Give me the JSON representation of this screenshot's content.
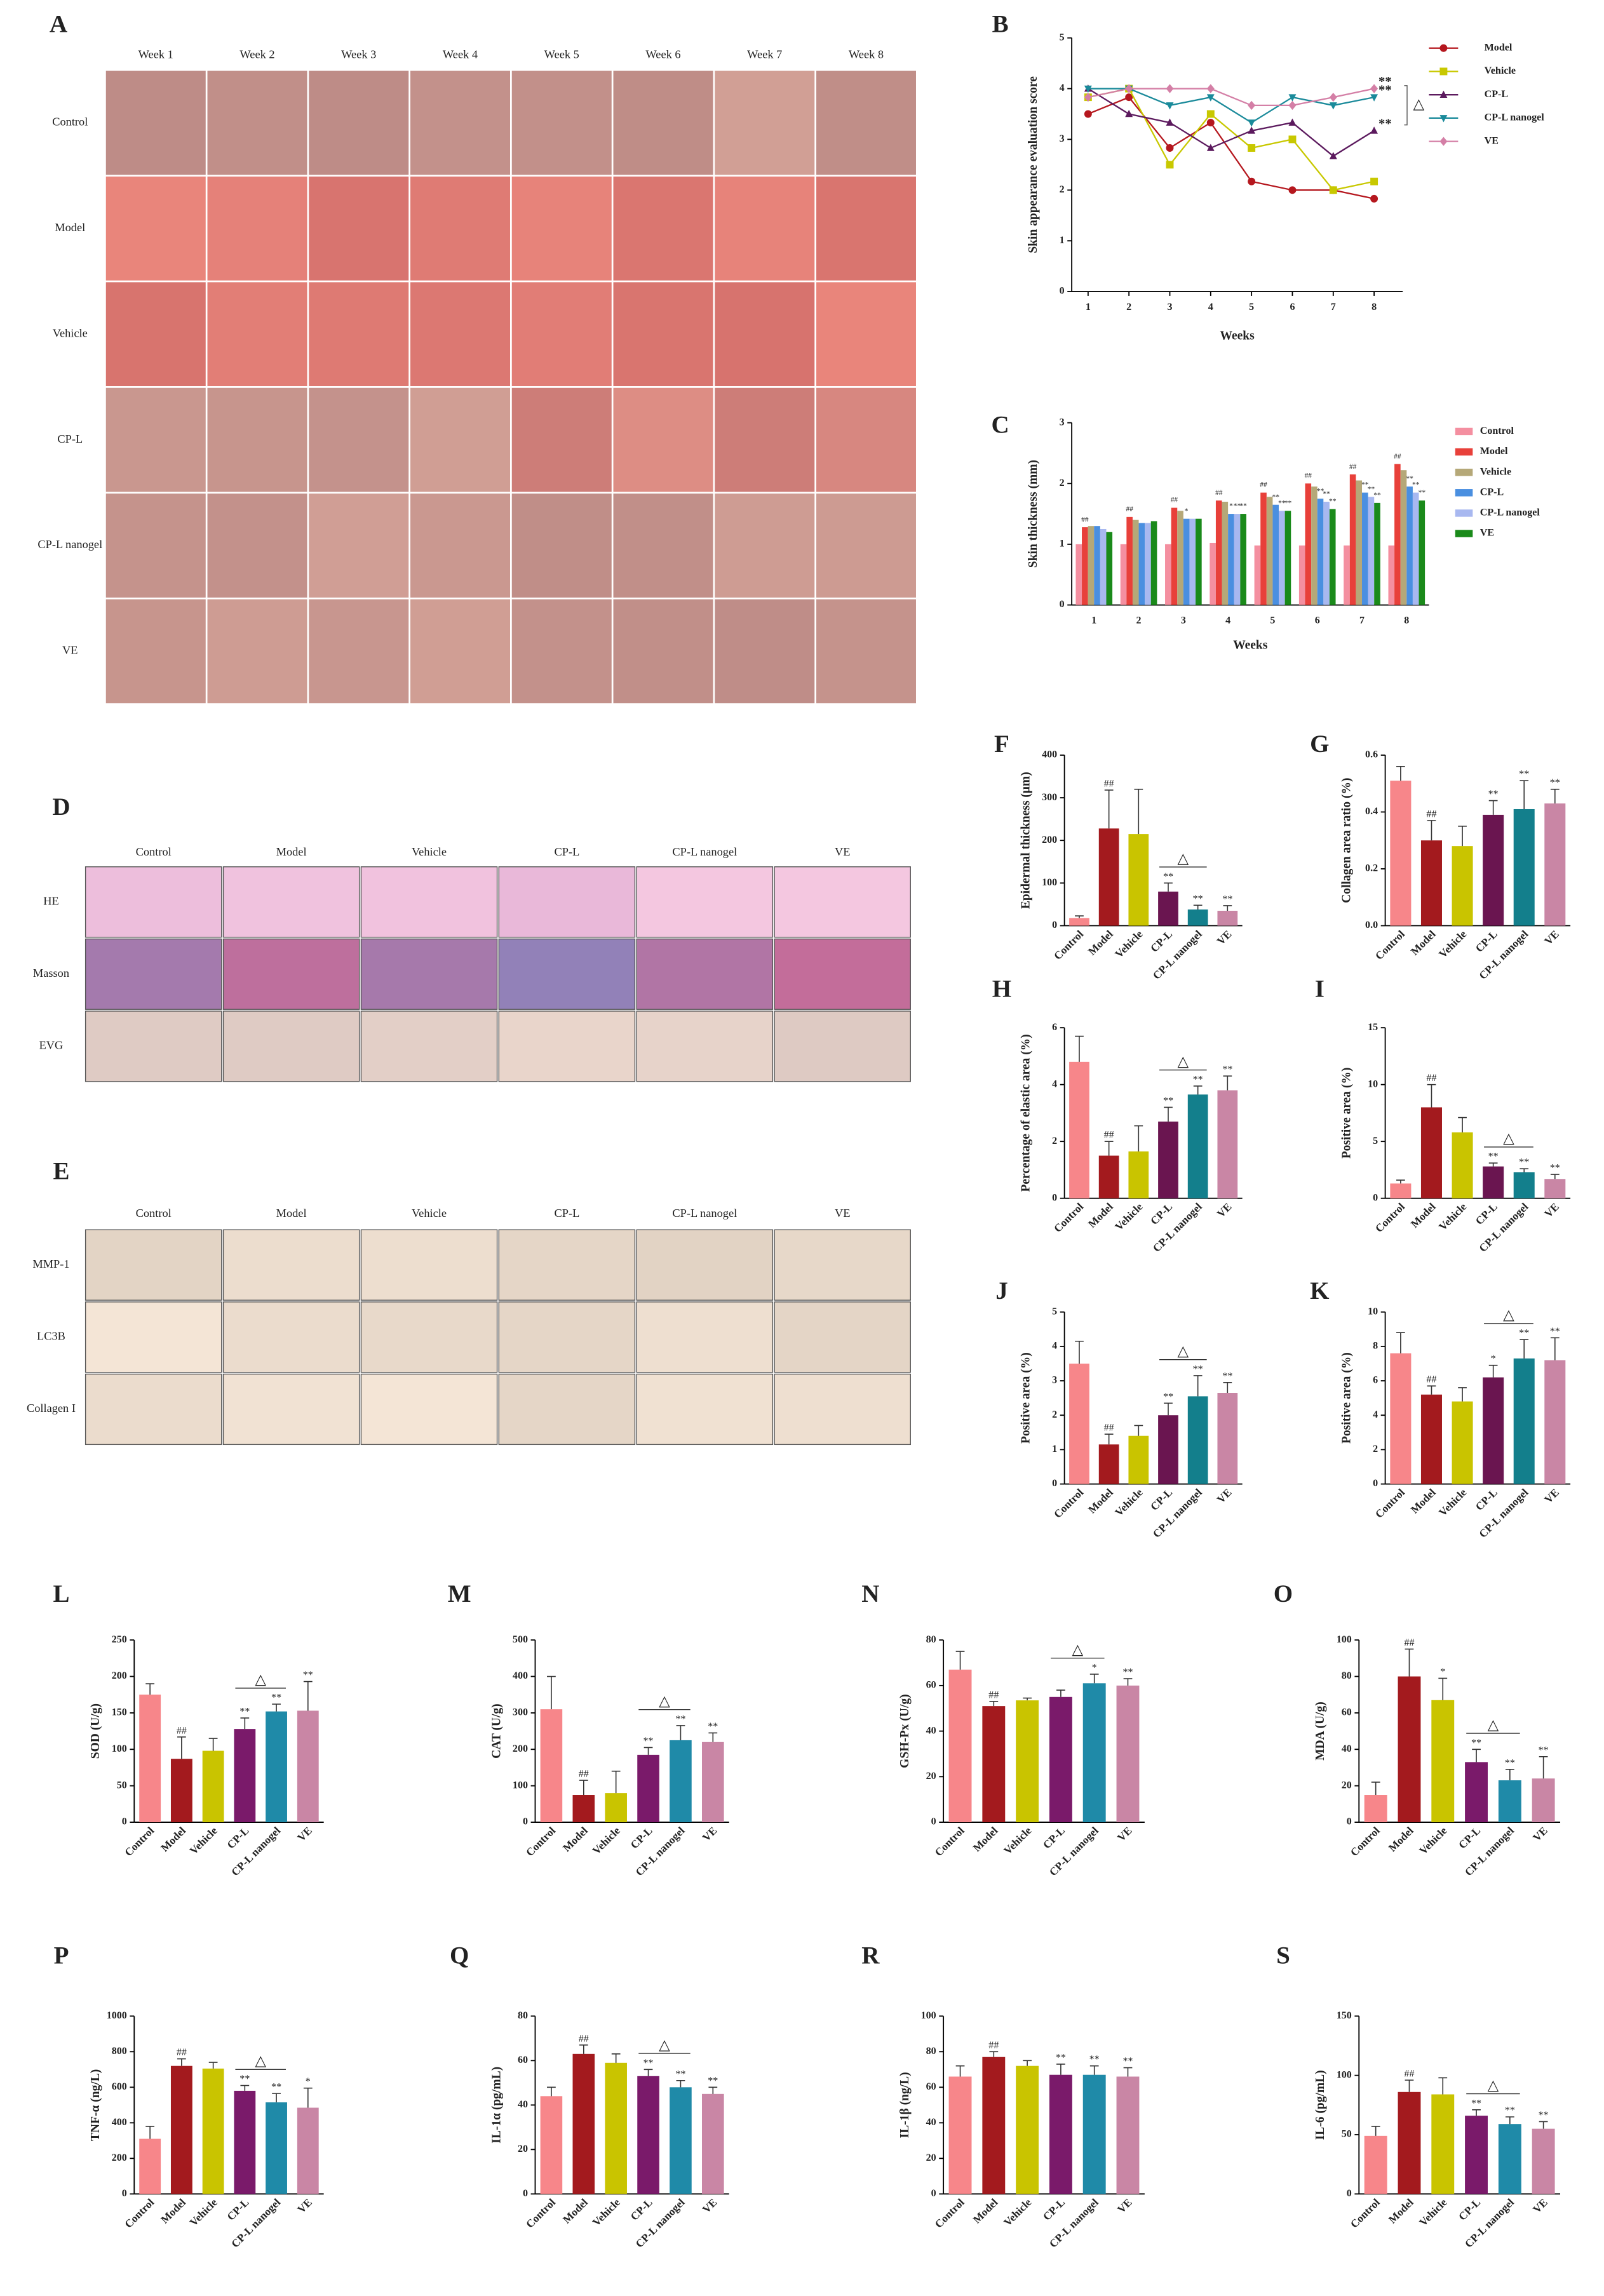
{
  "photo_panels": [
    {
      "label": "A",
      "columns": [
        "Week 1",
        "Week 2",
        "Week 3",
        "Week 4",
        "Week 5",
        "Week 6",
        "Week 7",
        "Week 8"
      ],
      "rows": [
        "Control",
        "Model",
        "Vehicle",
        "CP-L",
        "CP-L nanogel",
        "VE"
      ]
    },
    {
      "label": "D",
      "columns": [
        "Control",
        "Model",
        "Vehicle",
        "CP-L",
        "CP-L nanogel",
        "VE"
      ],
      "rows": [
        "HE",
        "Masson",
        "EVG"
      ]
    },
    {
      "label": "E",
      "columns": [
        "Control",
        "Model",
        "Vehicle",
        "CP-L",
        "CP-L nanogel",
        "VE"
      ],
      "rows": [
        "MMP-1",
        "LC3B",
        "Collagen I"
      ]
    }
  ],
  "chart_data": [
    {
      "type": "line",
      "label": "B",
      "ylabel": "Skin appearance evaluation score",
      "xlabel": "Weeks",
      "x": [
        1,
        2,
        3,
        4,
        5,
        6,
        7,
        8
      ],
      "xlim": [
        0.6,
        8.7
      ],
      "xticks": [
        1,
        2,
        3,
        4,
        5,
        6,
        7,
        8
      ],
      "ylim": [
        0,
        5
      ],
      "yticks": [
        0,
        1,
        2,
        3,
        4,
        5
      ],
      "series": [
        {
          "name": "Model",
          "color": "#b5171e",
          "marker": "circle",
          "values": [
            3.5,
            3.83,
            2.83,
            3.33,
            2.17,
            2.0,
            2.0,
            1.83
          ]
        },
        {
          "name": "Vehicle",
          "color": "#c8c800",
          "marker": "square",
          "values": [
            3.83,
            4.0,
            2.5,
            3.5,
            2.83,
            3.0,
            2.0,
            2.17
          ]
        },
        {
          "name": "CP-L",
          "color": "#5c1a5e",
          "marker": "triangle-up",
          "values": [
            4.0,
            3.5,
            3.33,
            2.83,
            3.17,
            3.33,
            2.67,
            3.17
          ],
          "sig": "**"
        },
        {
          "name": "CP-L nanogel",
          "color": "#1a8a9a",
          "marker": "triangle-down",
          "values": [
            4.0,
            4.0,
            3.67,
            3.83,
            3.33,
            3.83,
            3.67,
            3.83
          ],
          "sig": "**"
        },
        {
          "name": "VE",
          "color": "#d47fa6",
          "marker": "diamond",
          "values": [
            3.83,
            4.0,
            4.0,
            4.0,
            3.67,
            3.67,
            3.83,
            4.0
          ],
          "sig": "**"
        }
      ],
      "bracket": {
        "text": "△",
        "from": 2,
        "to": 3
      }
    },
    {
      "type": "grouped_bar",
      "label": "C",
      "ylabel": "Skin thickness (mm)",
      "xlabel": "Weeks",
      "categories": [
        "1",
        "2",
        "3",
        "4",
        "5",
        "6",
        "7",
        "8"
      ],
      "ylim": [
        0,
        3
      ],
      "yticks": [
        0,
        1,
        2,
        3
      ],
      "series": [
        {
          "name": "Control",
          "color": "#f48fa0",
          "values": [
            1.0,
            1.0,
            1.0,
            1.02,
            0.98,
            0.98,
            0.98,
            0.98
          ]
        },
        {
          "name": "Model",
          "color": "#e8403a",
          "values": [
            1.28,
            1.45,
            1.6,
            1.72,
            1.85,
            2.0,
            2.15,
            2.32
          ],
          "sig": [
            "##",
            "##",
            "##",
            "##",
            "##",
            "##",
            "##",
            "##"
          ]
        },
        {
          "name": "Vehicle",
          "color": "#b5a878",
          "values": [
            1.3,
            1.4,
            1.55,
            1.7,
            1.78,
            1.95,
            2.05,
            2.22
          ]
        },
        {
          "name": "CP-L",
          "color": "#4a8fe0",
          "values": [
            1.3,
            1.35,
            1.42,
            1.5,
            1.65,
            1.75,
            1.85,
            1.95
          ],
          "sig": [
            null,
            null,
            "*",
            "*",
            "**",
            "**",
            "**",
            "**"
          ]
        },
        {
          "name": "CP-L nanogel",
          "color": "#a8b8f0",
          "values": [
            1.25,
            1.35,
            1.42,
            1.5,
            1.55,
            1.7,
            1.78,
            1.85
          ],
          "sig": [
            null,
            null,
            null,
            "**",
            "**",
            "**",
            "**",
            "**"
          ]
        },
        {
          "name": "VE",
          "color": "#1a8a1a",
          "values": [
            1.2,
            1.38,
            1.42,
            1.5,
            1.55,
            1.58,
            1.68,
            1.72
          ],
          "sig": [
            null,
            null,
            null,
            "**",
            "**",
            "**",
            "**",
            "**"
          ]
        }
      ]
    },
    {
      "type": "bar",
      "label": "F",
      "ylabel": "Epidermal thickness (μm)",
      "categories": [
        "Control",
        "Model",
        "Vehicle",
        "CP-L",
        "CP-L nanogel",
        "VE"
      ],
      "colors": [
        "#f7868a",
        "#a31a1e",
        "#c9c400",
        "#6a1550",
        "#137f8c",
        "#c986a5"
      ],
      "ylim": [
        0,
        400
      ],
      "yticks": [
        0,
        100,
        200,
        300,
        400
      ],
      "values": [
        18,
        228,
        215,
        80,
        38,
        35
      ],
      "errors": [
        5,
        90,
        105,
        20,
        10,
        12
      ],
      "sig": [
        null,
        "##",
        null,
        "**",
        "**",
        "**"
      ],
      "bracket": {
        "text": "△",
        "from": 3,
        "to": 4
      }
    },
    {
      "type": "bar",
      "label": "G",
      "ylabel": "Collagen area ratio (%)",
      "categories": [
        "Control",
        "Model",
        "Vehicle",
        "CP-L",
        "CP-L nanogel",
        "VE"
      ],
      "colors": [
        "#f7868a",
        "#a31a1e",
        "#c9c400",
        "#6a1550",
        "#137f8c",
        "#c986a5"
      ],
      "ylim": [
        0,
        0.6
      ],
      "yticks": [
        {
          "value": 0,
          "label": "0.0"
        },
        {
          "value": 0.2,
          "label": "0.2"
        },
        {
          "value": 0.4,
          "label": "0.4"
        },
        {
          "value": 0.6,
          "label": "0.6"
        }
      ],
      "values": [
        0.51,
        0.3,
        0.28,
        0.39,
        0.41,
        0.43
      ],
      "errors": [
        0.05,
        0.07,
        0.07,
        0.05,
        0.1,
        0.05
      ],
      "sig": [
        null,
        "##",
        null,
        "**",
        "**",
        "**"
      ]
    },
    {
      "type": "bar",
      "label": "H",
      "ylabel": "Percentage of elastic area (%)",
      "categories": [
        "Control",
        "Model",
        "Vehicle",
        "CP-L",
        "CP-L nanogel",
        "VE"
      ],
      "colors": [
        "#f7868a",
        "#a31a1e",
        "#c9c400",
        "#6a1550",
        "#137f8c",
        "#c986a5"
      ],
      "ylim": [
        0,
        6
      ],
      "yticks": [
        0,
        2,
        4,
        6
      ],
      "values": [
        4.8,
        1.5,
        1.65,
        2.7,
        3.65,
        3.8
      ],
      "errors": [
        0.9,
        0.5,
        0.9,
        0.5,
        0.3,
        0.5
      ],
      "sig": [
        null,
        "##",
        null,
        "**",
        "**",
        "**"
      ],
      "bracket": {
        "text": "△",
        "from": 3,
        "to": 4
      }
    },
    {
      "type": "bar",
      "label": "I",
      "ylabel": "Positive area (%)",
      "categories": [
        "Control",
        "Model",
        "Vehicle",
        "CP-L",
        "CP-L nanogel",
        "VE"
      ],
      "colors": [
        "#f7868a",
        "#a31a1e",
        "#c9c400",
        "#6a1550",
        "#137f8c",
        "#c986a5"
      ],
      "ylim": [
        0,
        15
      ],
      "yticks": [
        0,
        5,
        10,
        15
      ],
      "values": [
        1.3,
        8.0,
        5.8,
        2.8,
        2.3,
        1.7
      ],
      "errors": [
        0.3,
        2.0,
        1.3,
        0.3,
        0.3,
        0.4
      ],
      "sig": [
        null,
        "##",
        null,
        "**",
        "**",
        "**"
      ],
      "bracket": {
        "text": "△",
        "from": 3,
        "to": 4
      }
    },
    {
      "type": "bar",
      "label": "J",
      "ylabel": "Positive area (%)",
      "categories": [
        "Control",
        "Model",
        "Vehicle",
        "CP-L",
        "CP-L nanogel",
        "VE"
      ],
      "colors": [
        "#f7868a",
        "#a31a1e",
        "#c9c400",
        "#6a1550",
        "#137f8c",
        "#c986a5"
      ],
      "ylim": [
        0,
        5
      ],
      "yticks": [
        0,
        1,
        2,
        3,
        4,
        5
      ],
      "values": [
        3.5,
        1.15,
        1.4,
        2.0,
        2.55,
        2.65
      ],
      "errors": [
        0.65,
        0.3,
        0.3,
        0.35,
        0.6,
        0.3
      ],
      "sig": [
        null,
        "##",
        null,
        "**",
        "**",
        "**"
      ],
      "bracket": {
        "text": "△",
        "from": 3,
        "to": 4
      }
    },
    {
      "type": "bar",
      "label": "K",
      "ylabel": "Positive area (%)",
      "categories": [
        "Control",
        "Model",
        "Vehicle",
        "CP-L",
        "CP-L nanogel",
        "VE"
      ],
      "colors": [
        "#f7868a",
        "#a31a1e",
        "#c9c400",
        "#6a1550",
        "#137f8c",
        "#c986a5"
      ],
      "ylim": [
        0,
        10
      ],
      "yticks": [
        0,
        2,
        4,
        6,
        8,
        10
      ],
      "values": [
        7.6,
        5.2,
        4.8,
        6.2,
        7.3,
        7.2
      ],
      "errors": [
        1.2,
        0.5,
        0.8,
        0.7,
        1.1,
        1.3
      ],
      "sig": [
        null,
        "##",
        null,
        "*",
        "**",
        "**"
      ],
      "bracket": {
        "text": "△",
        "from": 3,
        "to": 4
      }
    },
    {
      "type": "bar",
      "label": "L",
      "ylabel": "SOD (U/g)",
      "categories": [
        "Control",
        "Model",
        "Vehicle",
        "CP-L",
        "CP-L nanogel",
        "VE"
      ],
      "colors": [
        "#f7868a",
        "#a31a1e",
        "#c9c400",
        "#7a1a6a",
        "#1f8aa8",
        "#c986a5"
      ],
      "ylim": [
        0,
        250
      ],
      "yticks": [
        0,
        50,
        100,
        150,
        200,
        250
      ],
      "values": [
        175,
        87,
        98,
        128,
        152,
        153
      ],
      "errors": [
        15,
        30,
        17,
        15,
        10,
        40
      ],
      "sig": [
        null,
        "##",
        null,
        "**",
        "**",
        "**"
      ],
      "bracket": {
        "text": "△",
        "from": 3,
        "to": 4
      }
    },
    {
      "type": "bar",
      "label": "M",
      "ylabel": "CAT (U/g)",
      "categories": [
        "Control",
        "Model",
        "Vehicle",
        "CP-L",
        "CP-L nanogel",
        "VE"
      ],
      "colors": [
        "#f7868a",
        "#a31a1e",
        "#c9c400",
        "#7a1a6a",
        "#1f8aa8",
        "#c986a5"
      ],
      "ylim": [
        0,
        500
      ],
      "yticks": [
        0,
        100,
        200,
        300,
        400,
        500
      ],
      "values": [
        310,
        75,
        80,
        185,
        225,
        220
      ],
      "errors": [
        90,
        40,
        60,
        20,
        40,
        25
      ],
      "sig": [
        null,
        "##",
        null,
        "**",
        "**",
        "**"
      ],
      "bracket": {
        "text": "△",
        "from": 3,
        "to": 4
      }
    },
    {
      "type": "bar",
      "label": "N",
      "ylabel": "GSH-Px (U/g)",
      "categories": [
        "Control",
        "Model",
        "Vehicle",
        "CP-L",
        "CP-L nanogel",
        "VE"
      ],
      "colors": [
        "#f7868a",
        "#a31a1e",
        "#c9c400",
        "#7a1a6a",
        "#1f8aa8",
        "#c986a5"
      ],
      "ylim": [
        0,
        80
      ],
      "yticks": [
        0,
        20,
        40,
        60,
        80
      ],
      "values": [
        67,
        51,
        53.5,
        55,
        61,
        60
      ],
      "errors": [
        8,
        2,
        1,
        3,
        4,
        3
      ],
      "sig": [
        null,
        "##",
        null,
        null,
        "*",
        "**"
      ],
      "bracket": {
        "text": "△",
        "from": 3,
        "to": 4
      }
    },
    {
      "type": "bar",
      "label": "O",
      "ylabel": "MDA (U/g)",
      "categories": [
        "Control",
        "Model",
        "Vehicle",
        "CP-L",
        "CP-L nanogel",
        "VE"
      ],
      "colors": [
        "#f7868a",
        "#a31a1e",
        "#c9c400",
        "#7a1a6a",
        "#1f8aa8",
        "#c986a5"
      ],
      "ylim": [
        0,
        100
      ],
      "yticks": [
        0,
        20,
        40,
        60,
        80,
        100
      ],
      "values": [
        15,
        80,
        67,
        33,
        23,
        24
      ],
      "errors": [
        7,
        15,
        12,
        7,
        6,
        12
      ],
      "sig": [
        null,
        "##",
        "*",
        "**",
        "**",
        "**"
      ],
      "bracket": {
        "text": "△",
        "from": 3,
        "to": 4
      }
    },
    {
      "type": "bar",
      "label": "P",
      "ylabel": "TNF-α (ng/L)",
      "categories": [
        "Control",
        "Model",
        "Vehicle",
        "CP-L",
        "CP-L nanogel",
        "VE"
      ],
      "colors": [
        "#f7868a",
        "#a31a1e",
        "#c9c400",
        "#7a1a6a",
        "#1f8aa8",
        "#c986a5"
      ],
      "ylim": [
        0,
        1000
      ],
      "yticks": [
        0,
        200,
        400,
        600,
        800,
        1000
      ],
      "values": [
        310,
        720,
        705,
        580,
        515,
        485
      ],
      "errors": [
        70,
        40,
        35,
        30,
        50,
        110
      ],
      "sig": [
        null,
        "##",
        null,
        "**",
        "**",
        "*"
      ],
      "bracket": {
        "text": "△",
        "from": 3,
        "to": 4
      }
    },
    {
      "type": "bar",
      "label": "Q",
      "ylabel": "IL-1α (pg/mL)",
      "categories": [
        "Control",
        "Model",
        "Vehicle",
        "CP-L",
        "CP-L nanogel",
        "VE"
      ],
      "colors": [
        "#f7868a",
        "#a31a1e",
        "#c9c400",
        "#7a1a6a",
        "#1f8aa8",
        "#c986a5"
      ],
      "ylim": [
        0,
        80
      ],
      "yticks": [
        0,
        20,
        40,
        60,
        80
      ],
      "values": [
        44,
        63,
        59,
        53,
        48,
        45
      ],
      "errors": [
        4,
        4,
        4,
        3,
        3,
        3
      ],
      "sig": [
        null,
        "##",
        null,
        "**",
        "**",
        "**"
      ],
      "bracket": {
        "text": "△",
        "from": 3,
        "to": 4
      }
    },
    {
      "type": "bar",
      "label": "R",
      "ylabel": "IL-1β (ng/L)",
      "categories": [
        "Control",
        "Model",
        "Vehicle",
        "CP-L",
        "CP-L nanogel",
        "VE"
      ],
      "colors": [
        "#f7868a",
        "#a31a1e",
        "#c9c400",
        "#7a1a6a",
        "#1f8aa8",
        "#c986a5"
      ],
      "ylim": [
        0,
        100
      ],
      "yticks": [
        0,
        20,
        40,
        60,
        80,
        100
      ],
      "values": [
        66,
        77,
        72,
        67,
        67,
        66
      ],
      "errors": [
        6,
        3,
        3,
        6,
        5,
        5
      ],
      "sig": [
        null,
        "##",
        null,
        "**",
        "**",
        "**"
      ]
    },
    {
      "type": "bar",
      "label": "S",
      "ylabel": "IL-6 (pg/mL)",
      "categories": [
        "Control",
        "Model",
        "Vehicle",
        "CP-L",
        "CP-L nanogel",
        "VE"
      ],
      "colors": [
        "#f7868a",
        "#a31a1e",
        "#c9c400",
        "#7a1a6a",
        "#1f8aa8",
        "#c986a5"
      ],
      "ylim": [
        0,
        150
      ],
      "yticks": [
        0,
        50,
        100,
        150
      ],
      "values": [
        49,
        86,
        84,
        66,
        59,
        55
      ],
      "errors": [
        8,
        10,
        14,
        5,
        6,
        6
      ],
      "sig": [
        null,
        "##",
        null,
        "**",
        "**",
        "**"
      ],
      "bracket": {
        "text": "△",
        "from": 3,
        "to": 4
      }
    }
  ]
}
